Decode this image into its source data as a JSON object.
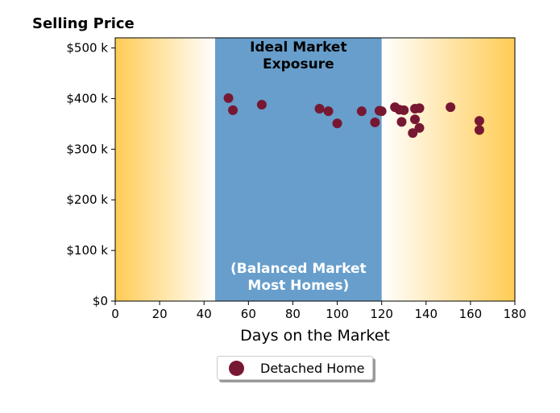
{
  "chart_data": {
    "type": "scatter",
    "title": "Selling Price",
    "xlabel": "Days on the Market",
    "ylabel": "",
    "xlim": [
      0,
      180
    ],
    "ylim": [
      0,
      520000
    ],
    "x_ticks": [
      0,
      20,
      40,
      60,
      80,
      100,
      120,
      140,
      160,
      180
    ],
    "y_ticks": [
      0,
      100000,
      200000,
      300000,
      400000,
      500000
    ],
    "y_tick_labels": [
      "$0",
      "$100 k",
      "$200 k",
      "$300 k",
      "$400 k",
      "$500 k"
    ],
    "grid": false,
    "legend_position": "bottom-center",
    "background": {
      "highlight_band": {
        "x_range": [
          45,
          120
        ],
        "color": "#679ecb",
        "label_top": "Ideal Market\nExposure",
        "label_bottom": "(Balanced Market\nMost Homes)"
      },
      "gradient_color": "#ffcc55",
      "fade_color": "#ffffff"
    },
    "series": [
      {
        "name": "Detached Home",
        "color": "#771833",
        "points": [
          [
            51,
            401000
          ],
          [
            53,
            377000
          ],
          [
            66,
            388000
          ],
          [
            92,
            380000
          ],
          [
            96,
            375000
          ],
          [
            100,
            351000
          ],
          [
            111,
            375000
          ],
          [
            117,
            353000
          ],
          [
            119,
            376000
          ],
          [
            120,
            375000
          ],
          [
            126,
            383000
          ],
          [
            128,
            378000
          ],
          [
            129,
            354000
          ],
          [
            130,
            377000
          ],
          [
            134,
            332000
          ],
          [
            135,
            380000
          ],
          [
            135,
            359000
          ],
          [
            137,
            381000
          ],
          [
            137,
            342000
          ],
          [
            151,
            383000
          ],
          [
            164,
            356000
          ],
          [
            164,
            338000
          ]
        ]
      }
    ]
  }
}
